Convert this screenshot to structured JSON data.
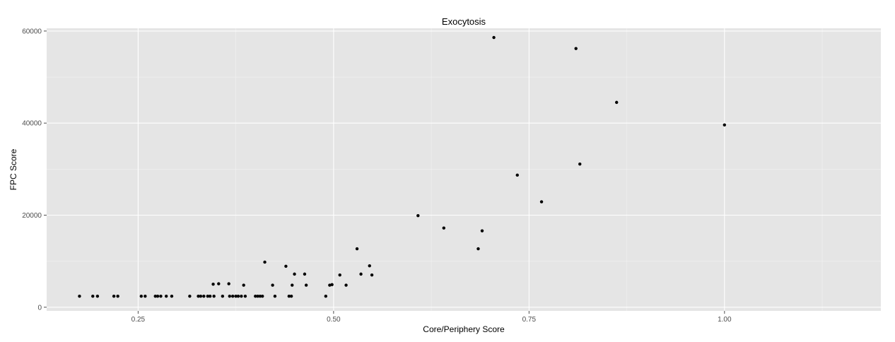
{
  "chart_data": {
    "type": "scatter",
    "title": "Exocytosis",
    "xlabel": "Core/Periphery Score",
    "ylabel": "FPC Score",
    "xlim": [
      0.133,
      1.2
    ],
    "ylim": [
      -800,
      60600
    ],
    "x_ticks": [
      0.25,
      0.5,
      0.75,
      1.0
    ],
    "x_tick_labels": [
      "0.25",
      "0.50",
      "0.75",
      "1.00"
    ],
    "y_ticks": [
      0,
      20000,
      40000,
      60000
    ],
    "y_tick_labels": [
      "0",
      "20000",
      "40000",
      "60000"
    ],
    "grid": true,
    "points": [
      {
        "x": 0.175,
        "y": 2400
      },
      {
        "x": 0.192,
        "y": 2400
      },
      {
        "x": 0.198,
        "y": 2400
      },
      {
        "x": 0.219,
        "y": 2400
      },
      {
        "x": 0.224,
        "y": 2400
      },
      {
        "x": 0.254,
        "y": 2400
      },
      {
        "x": 0.259,
        "y": 2400
      },
      {
        "x": 0.272,
        "y": 2400
      },
      {
        "x": 0.275,
        "y": 2400
      },
      {
        "x": 0.279,
        "y": 2400
      },
      {
        "x": 0.286,
        "y": 2400
      },
      {
        "x": 0.293,
        "y": 2400
      },
      {
        "x": 0.316,
        "y": 2400
      },
      {
        "x": 0.327,
        "y": 2400
      },
      {
        "x": 0.33,
        "y": 2400
      },
      {
        "x": 0.334,
        "y": 2400
      },
      {
        "x": 0.339,
        "y": 2400
      },
      {
        "x": 0.342,
        "y": 2400
      },
      {
        "x": 0.346,
        "y": 5000
      },
      {
        "x": 0.347,
        "y": 2400
      },
      {
        "x": 0.353,
        "y": 5100
      },
      {
        "x": 0.358,
        "y": 2400
      },
      {
        "x": 0.366,
        "y": 5100
      },
      {
        "x": 0.367,
        "y": 2400
      },
      {
        "x": 0.371,
        "y": 2400
      },
      {
        "x": 0.375,
        "y": 2400
      },
      {
        "x": 0.378,
        "y": 2400
      },
      {
        "x": 0.382,
        "y": 2400
      },
      {
        "x": 0.385,
        "y": 4800
      },
      {
        "x": 0.387,
        "y": 2400
      },
      {
        "x": 0.4,
        "y": 2400
      },
      {
        "x": 0.403,
        "y": 2400
      },
      {
        "x": 0.406,
        "y": 2400
      },
      {
        "x": 0.409,
        "y": 2400
      },
      {
        "x": 0.412,
        "y": 9800
      },
      {
        "x": 0.422,
        "y": 4800
      },
      {
        "x": 0.425,
        "y": 2400
      },
      {
        "x": 0.439,
        "y": 8900
      },
      {
        "x": 0.443,
        "y": 2400
      },
      {
        "x": 0.446,
        "y": 2400
      },
      {
        "x": 0.447,
        "y": 4800
      },
      {
        "x": 0.45,
        "y": 7200
      },
      {
        "x": 0.463,
        "y": 7200
      },
      {
        "x": 0.465,
        "y": 4800
      },
      {
        "x": 0.49,
        "y": 2400
      },
      {
        "x": 0.495,
        "y": 4800
      },
      {
        "x": 0.498,
        "y": 4900
      },
      {
        "x": 0.508,
        "y": 7000
      },
      {
        "x": 0.516,
        "y": 4800
      },
      {
        "x": 0.53,
        "y": 12700
      },
      {
        "x": 0.535,
        "y": 7200
      },
      {
        "x": 0.546,
        "y": 9000
      },
      {
        "x": 0.549,
        "y": 7000
      },
      {
        "x": 0.608,
        "y": 19900
      },
      {
        "x": 0.641,
        "y": 17200
      },
      {
        "x": 0.685,
        "y": 12700
      },
      {
        "x": 0.69,
        "y": 16600
      },
      {
        "x": 0.705,
        "y": 58600
      },
      {
        "x": 0.735,
        "y": 28700
      },
      {
        "x": 0.766,
        "y": 22900
      },
      {
        "x": 0.81,
        "y": 56200
      },
      {
        "x": 0.815,
        "y": 31100
      },
      {
        "x": 0.862,
        "y": 44500
      },
      {
        "x": 1.0,
        "y": 39600
      }
    ]
  }
}
